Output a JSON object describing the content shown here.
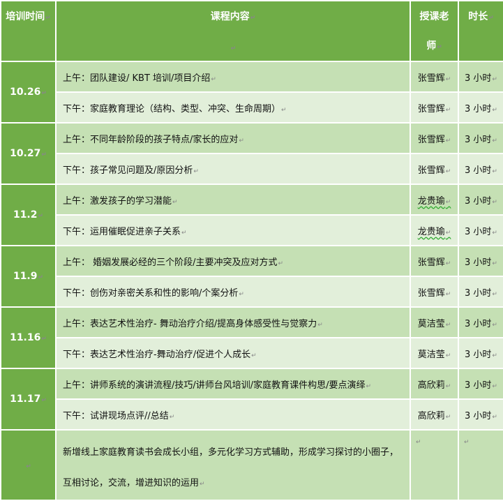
{
  "header": {
    "date": "培训时间",
    "content": "课程内容",
    "teacher_line1": "授课老",
    "teacher_line2": "师",
    "duration": "时长"
  },
  "sessions": [
    {
      "date": "10.26",
      "rows": [
        {
          "content": "上午：团队建设/ KBT 培训/项目介绍",
          "teacher": "张雪辉",
          "duration": "3 小时"
        },
        {
          "content": "下午：家庭教育理论（结构、类型、冲突、生命周期）",
          "teacher": "张雪辉",
          "duration": "3 小时"
        }
      ]
    },
    {
      "date": "10.27",
      "rows": [
        {
          "content": "上午：不同年龄阶段的孩子特点/家长的应对",
          "teacher": "张雪辉",
          "duration": "3 小时"
        },
        {
          "content": "下午：孩子常见问题及/原因分析",
          "teacher": "张雪辉",
          "duration": "3 小时"
        }
      ]
    },
    {
      "date": "11.2",
      "rows": [
        {
          "content": "上午：激发孩子的学习潜能",
          "teacher": "龙贵瑜",
          "duration": "3 小时"
        },
        {
          "content": "下午：运用催眠促进亲子关系",
          "teacher": "龙贵瑜",
          "duration": "3 小时"
        }
      ]
    },
    {
      "date": "11.9",
      "rows": [
        {
          "content": "上午： 婚姻发展必经的三个阶段/主要冲突及应对方式",
          "teacher": "张雪辉",
          "duration": "3 小时"
        },
        {
          "content": "下午：创伤对亲密关系和性的影响/个案分析",
          "teacher": "张雪辉",
          "duration": "3 小时"
        }
      ]
    },
    {
      "date": "11.16",
      "rows": [
        {
          "content": "上午：表达艺术性治疗- 舞动治疗介绍/提高身体感受性与觉察力",
          "teacher": "莫洁莹",
          "duration": "3 小时"
        },
        {
          "content": "下午：表达艺术性治疗-舞动治疗/促进个人成长",
          "teacher": "莫洁莹",
          "duration": "3 小时"
        }
      ]
    },
    {
      "date": "11.17",
      "rows": [
        {
          "content": "上午：讲师系统的演讲流程/技巧/讲师台风培训/家庭教育课件构思/要点演绎",
          "teacher": "高欣莉",
          "duration": "3 小时"
        },
        {
          "content": "下午：试讲现场点评//总结",
          "teacher": "高欣莉",
          "duration": "3 小时"
        }
      ]
    }
  ],
  "note": "新增线上家庭教育读书会成长小组，多元化学习方式辅助，形成学习探讨的小圈子，互相讨论，交流，增进知识的运用",
  "colors": {
    "header": "#70AD47",
    "row_dark": "#C5E0B4",
    "row_light": "#E2EFDA"
  }
}
